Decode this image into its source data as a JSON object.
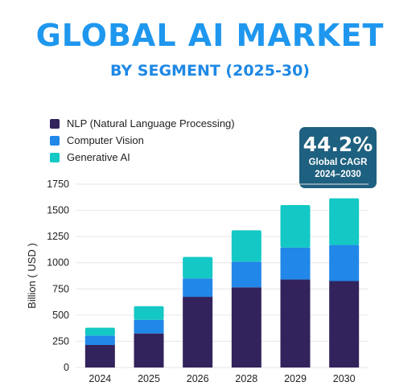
{
  "header": {
    "title": "GLOBAL AI MARKET",
    "subtitle": "BY SEGMENT (2025-30)"
  },
  "kpi": {
    "value": "44.2%",
    "label": "Global CAGR",
    "period": "2024–2030"
  },
  "colors": {
    "title": "#1f97ee",
    "subtitle": "#1e88e5",
    "kpi_bg": "#1e607f",
    "nlp": "#32235c",
    "cv": "#2187e8",
    "gen": "#14c8c5",
    "grid": "#e6e6e6"
  },
  "chart_data": {
    "type": "bar",
    "stacked": true,
    "categories": [
      "2024",
      "2025",
      "2026",
      "2028",
      "2029",
      "2030"
    ],
    "series": [
      {
        "name": "NLP (Natural Language Processing)",
        "values": [
          215,
          325,
          675,
          765,
          840,
          825
        ],
        "color": "#32235c"
      },
      {
        "name": "Computer Vision",
        "values": [
          90,
          130,
          175,
          245,
          305,
          345
        ],
        "color": "#2187e8"
      },
      {
        "name": "Generative AI",
        "values": [
          75,
          130,
          205,
          300,
          405,
          445
        ],
        "color": "#14c8c5"
      }
    ],
    "ylabel": "Billion ( USD )",
    "xlabel": "",
    "ylim": [
      0,
      1750
    ],
    "yticks": [
      0,
      250,
      500,
      750,
      1000,
      1250,
      1500,
      1750
    ],
    "grid": true,
    "legend": "top-left"
  }
}
